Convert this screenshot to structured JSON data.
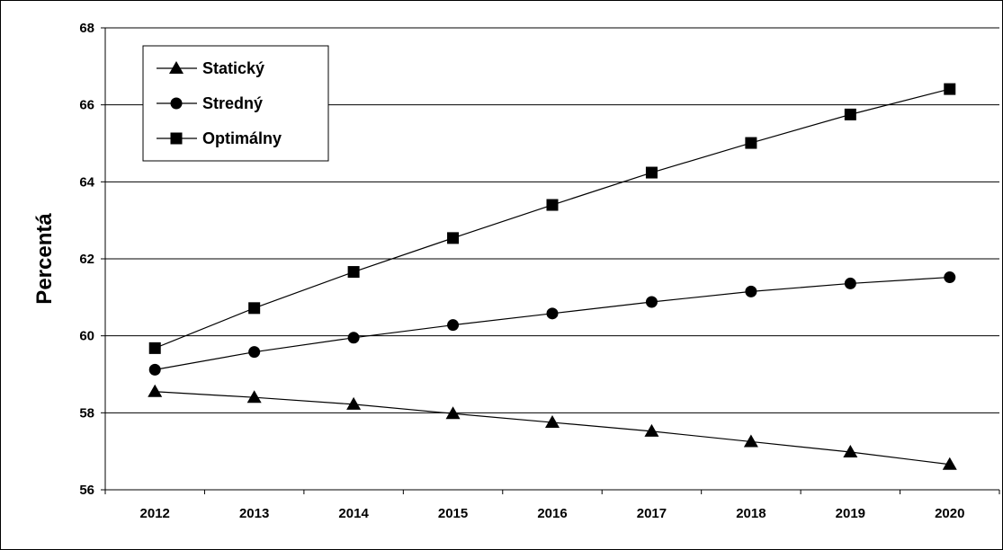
{
  "chart_data": {
    "type": "line",
    "title": "",
    "xlabel": "",
    "ylabel": "Percentá",
    "x": [
      2012,
      2013,
      2014,
      2015,
      2016,
      2017,
      2018,
      2019,
      2020
    ],
    "ylim": [
      56,
      68
    ],
    "y_ticks": [
      56,
      58,
      60,
      62,
      64,
      66,
      68
    ],
    "grid": true,
    "legend_position": "top-left",
    "series": [
      {
        "name": "Statický",
        "marker": "triangle",
        "values": [
          58.55,
          58.4,
          58.22,
          57.98,
          57.75,
          57.52,
          57.25,
          56.98,
          56.66
        ]
      },
      {
        "name": "Stredný",
        "marker": "circle",
        "values": [
          59.12,
          59.58,
          59.95,
          60.28,
          60.58,
          60.88,
          61.15,
          61.36,
          61.52
        ]
      },
      {
        "name": "Optimálny",
        "marker": "square",
        "values": [
          59.68,
          60.72,
          61.66,
          62.54,
          63.4,
          64.24,
          65.01,
          65.75,
          66.41
        ]
      }
    ],
    "colors": {
      "line": "#000000",
      "marker": "#000000",
      "grid": "#000000",
      "background": "#ffffff"
    }
  }
}
